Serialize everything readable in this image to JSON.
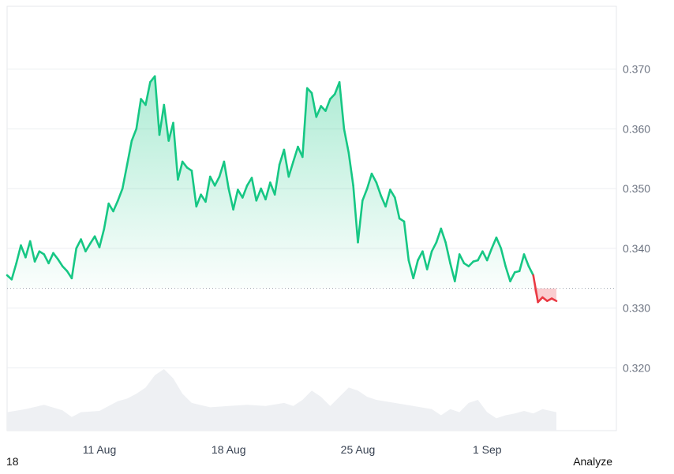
{
  "chart_data": {
    "type": "area",
    "title": "",
    "xlabel": "",
    "ylabel": "",
    "ylim": [
      0.3095,
      0.3805
    ],
    "xlim": [
      "2024-08-06",
      "2024-09-08"
    ],
    "y_ticks": [
      {
        "value": 0.37,
        "label": "0.370"
      },
      {
        "value": 0.36,
        "label": "0.360"
      },
      {
        "value": 0.35,
        "label": "0.350"
      },
      {
        "value": 0.34,
        "label": "0.340"
      },
      {
        "value": 0.33,
        "label": "0.330"
      },
      {
        "value": 0.32,
        "label": "0.320"
      }
    ],
    "x_ticks": [
      {
        "date": "2024-08-11",
        "label": "11 Aug"
      },
      {
        "date": "2024-08-18",
        "label": "18 Aug"
      },
      {
        "date": "2024-08-25",
        "label": "25 Aug"
      },
      {
        "date": "2024-09-01",
        "label": "1 Sep"
      }
    ],
    "baseline": 0.3333,
    "colors": {
      "up": "#16c784",
      "down": "#ea3943",
      "volume": "#eef0f3",
      "grid": "#eceef1"
    },
    "series": [
      {
        "values": [
          [
            "2024-08-06 00:00",
            0.3355
          ],
          [
            "2024-08-06 06:00",
            0.3348
          ],
          [
            "2024-08-06 12:00",
            0.3375
          ],
          [
            "2024-08-06 18:00",
            0.3405
          ],
          [
            "2024-08-07 00:00",
            0.3385
          ],
          [
            "2024-08-07 06:00",
            0.3412
          ],
          [
            "2024-08-07 12:00",
            0.3378
          ],
          [
            "2024-08-07 18:00",
            0.3395
          ],
          [
            "2024-08-08 00:00",
            0.339
          ],
          [
            "2024-08-08 06:00",
            0.3375
          ],
          [
            "2024-08-08 12:00",
            0.3392
          ],
          [
            "2024-08-08 18:00",
            0.3382
          ],
          [
            "2024-08-09 00:00",
            0.337
          ],
          [
            "2024-08-09 06:00",
            0.3362
          ],
          [
            "2024-08-09 12:00",
            0.335
          ],
          [
            "2024-08-09 18:00",
            0.34
          ],
          [
            "2024-08-10 00:00",
            0.3415
          ],
          [
            "2024-08-10 06:00",
            0.3395
          ],
          [
            "2024-08-10 12:00",
            0.3408
          ],
          [
            "2024-08-10 18:00",
            0.342
          ],
          [
            "2024-08-11 00:00",
            0.3402
          ],
          [
            "2024-08-11 06:00",
            0.3432
          ],
          [
            "2024-08-11 12:00",
            0.3475
          ],
          [
            "2024-08-11 18:00",
            0.3462
          ],
          [
            "2024-08-12 00:00",
            0.348
          ],
          [
            "2024-08-12 06:00",
            0.35
          ],
          [
            "2024-08-12 12:00",
            0.354
          ],
          [
            "2024-08-12 18:00",
            0.358
          ],
          [
            "2024-08-13 00:00",
            0.36
          ],
          [
            "2024-08-13 06:00",
            0.365
          ],
          [
            "2024-08-13 12:00",
            0.364
          ],
          [
            "2024-08-13 18:00",
            0.3678
          ],
          [
            "2024-08-14 00:00",
            0.3688
          ],
          [
            "2024-08-14 06:00",
            0.359
          ],
          [
            "2024-08-14 12:00",
            0.364
          ],
          [
            "2024-08-14 18:00",
            0.358
          ],
          [
            "2024-08-15 00:00",
            0.361
          ],
          [
            "2024-08-15 06:00",
            0.3515
          ],
          [
            "2024-08-15 12:00",
            0.3545
          ],
          [
            "2024-08-15 18:00",
            0.3535
          ],
          [
            "2024-08-16 00:00",
            0.353
          ],
          [
            "2024-08-16 06:00",
            0.347
          ],
          [
            "2024-08-16 12:00",
            0.349
          ],
          [
            "2024-08-16 18:00",
            0.3478
          ],
          [
            "2024-08-17 00:00",
            0.352
          ],
          [
            "2024-08-17 06:00",
            0.3505
          ],
          [
            "2024-08-17 12:00",
            0.352
          ],
          [
            "2024-08-17 18:00",
            0.3545
          ],
          [
            "2024-08-18 00:00",
            0.35
          ],
          [
            "2024-08-18 06:00",
            0.3465
          ],
          [
            "2024-08-18 12:00",
            0.3498
          ],
          [
            "2024-08-18 18:00",
            0.3485
          ],
          [
            "2024-08-19 00:00",
            0.3505
          ],
          [
            "2024-08-19 06:00",
            0.3518
          ],
          [
            "2024-08-19 12:00",
            0.348
          ],
          [
            "2024-08-19 18:00",
            0.35
          ],
          [
            "2024-08-20 00:00",
            0.3482
          ],
          [
            "2024-08-20 06:00",
            0.351
          ],
          [
            "2024-08-20 12:00",
            0.349
          ],
          [
            "2024-08-20 18:00",
            0.354
          ],
          [
            "2024-08-21 00:00",
            0.3565
          ],
          [
            "2024-08-21 06:00",
            0.352
          ],
          [
            "2024-08-21 12:00",
            0.3545
          ],
          [
            "2024-08-21 18:00",
            0.357
          ],
          [
            "2024-08-22 00:00",
            0.3553
          ],
          [
            "2024-08-22 06:00",
            0.3668
          ],
          [
            "2024-08-22 12:00",
            0.366
          ],
          [
            "2024-08-22 18:00",
            0.362
          ],
          [
            "2024-08-23 00:00",
            0.3638
          ],
          [
            "2024-08-23 06:00",
            0.363
          ],
          [
            "2024-08-23 12:00",
            0.365
          ],
          [
            "2024-08-23 18:00",
            0.3658
          ],
          [
            "2024-08-24 00:00",
            0.3678
          ],
          [
            "2024-08-24 06:00",
            0.36
          ],
          [
            "2024-08-24 12:00",
            0.356
          ],
          [
            "2024-08-24 18:00",
            0.3505
          ],
          [
            "2024-08-25 00:00",
            0.341
          ],
          [
            "2024-08-25 06:00",
            0.348
          ],
          [
            "2024-08-25 12:00",
            0.35
          ],
          [
            "2024-08-25 18:00",
            0.3525
          ],
          [
            "2024-08-26 00:00",
            0.351
          ],
          [
            "2024-08-26 06:00",
            0.3488
          ],
          [
            "2024-08-26 12:00",
            0.347
          ],
          [
            "2024-08-26 18:00",
            0.3498
          ],
          [
            "2024-08-27 00:00",
            0.3485
          ],
          [
            "2024-08-27 06:00",
            0.345
          ],
          [
            "2024-08-27 12:00",
            0.3445
          ],
          [
            "2024-08-27 18:00",
            0.338
          ],
          [
            "2024-08-28 00:00",
            0.335
          ],
          [
            "2024-08-28 06:00",
            0.338
          ],
          [
            "2024-08-28 12:00",
            0.3395
          ],
          [
            "2024-08-28 18:00",
            0.3365
          ],
          [
            "2024-08-29 00:00",
            0.3395
          ],
          [
            "2024-08-29 06:00",
            0.341
          ],
          [
            "2024-08-29 12:00",
            0.3433
          ],
          [
            "2024-08-29 18:00",
            0.341
          ],
          [
            "2024-08-30 00:00",
            0.3375
          ],
          [
            "2024-08-30 06:00",
            0.3345
          ],
          [
            "2024-08-30 12:00",
            0.339
          ],
          [
            "2024-08-30 18:00",
            0.3375
          ],
          [
            "2024-08-31 00:00",
            0.337
          ],
          [
            "2024-08-31 06:00",
            0.3378
          ],
          [
            "2024-08-31 12:00",
            0.338
          ],
          [
            "2024-08-31 18:00",
            0.3395
          ],
          [
            "2024-09-01 00:00",
            0.338
          ],
          [
            "2024-09-01 06:00",
            0.34
          ],
          [
            "2024-09-01 12:00",
            0.3418
          ],
          [
            "2024-09-01 18:00",
            0.34
          ],
          [
            "2024-09-02 00:00",
            0.337
          ],
          [
            "2024-09-02 06:00",
            0.3345
          ],
          [
            "2024-09-02 12:00",
            0.336
          ],
          [
            "2024-09-02 18:00",
            0.3362
          ],
          [
            "2024-09-03 00:00",
            0.339
          ],
          [
            "2024-09-03 06:00",
            0.337
          ],
          [
            "2024-09-03 12:00",
            0.3355
          ],
          [
            "2024-09-03 18:00",
            0.331
          ],
          [
            "2024-09-04 00:00",
            0.3318
          ],
          [
            "2024-09-04 06:00",
            0.3312
          ],
          [
            "2024-09-04 12:00",
            0.3316
          ],
          [
            "2024-09-04 18:00",
            0.3312
          ]
        ]
      }
    ],
    "volume": [
      [
        "2024-08-06 00:00",
        0.3
      ],
      [
        "2024-08-07 00:00",
        0.35
      ],
      [
        "2024-08-08 00:00",
        0.42
      ],
      [
        "2024-08-09 00:00",
        0.33
      ],
      [
        "2024-08-09 12:00",
        0.22
      ],
      [
        "2024-08-10 00:00",
        0.3
      ],
      [
        "2024-08-11 00:00",
        0.32
      ],
      [
        "2024-08-11 12:00",
        0.4
      ],
      [
        "2024-08-12 00:00",
        0.48
      ],
      [
        "2024-08-12 12:00",
        0.52
      ],
      [
        "2024-08-13 00:00",
        0.6
      ],
      [
        "2024-08-13 12:00",
        0.7
      ],
      [
        "2024-08-14 00:00",
        0.9
      ],
      [
        "2024-08-14 12:00",
        1.0
      ],
      [
        "2024-08-15 00:00",
        0.85
      ],
      [
        "2024-08-15 12:00",
        0.6
      ],
      [
        "2024-08-16 00:00",
        0.45
      ],
      [
        "2024-08-17 00:00",
        0.38
      ],
      [
        "2024-08-18 00:00",
        0.4
      ],
      [
        "2024-08-19 00:00",
        0.42
      ],
      [
        "2024-08-20 00:00",
        0.4
      ],
      [
        "2024-08-21 00:00",
        0.45
      ],
      [
        "2024-08-21 12:00",
        0.4
      ],
      [
        "2024-08-22 00:00",
        0.5
      ],
      [
        "2024-08-22 12:00",
        0.65
      ],
      [
        "2024-08-23 00:00",
        0.55
      ],
      [
        "2024-08-23 12:00",
        0.4
      ],
      [
        "2024-08-24 00:00",
        0.55
      ],
      [
        "2024-08-24 12:00",
        0.7
      ],
      [
        "2024-08-25 00:00",
        0.65
      ],
      [
        "2024-08-25 12:00",
        0.55
      ],
      [
        "2024-08-26 00:00",
        0.5
      ],
      [
        "2024-08-27 00:00",
        0.45
      ],
      [
        "2024-08-28 00:00",
        0.4
      ],
      [
        "2024-08-29 00:00",
        0.35
      ],
      [
        "2024-08-29 12:00",
        0.25
      ],
      [
        "2024-08-30 00:00",
        0.35
      ],
      [
        "2024-08-30 12:00",
        0.3
      ],
      [
        "2024-08-31 00:00",
        0.45
      ],
      [
        "2024-08-31 12:00",
        0.5
      ],
      [
        "2024-09-01 00:00",
        0.3
      ],
      [
        "2024-09-01 12:00",
        0.2
      ],
      [
        "2024-09-02 00:00",
        0.25
      ],
      [
        "2024-09-02 12:00",
        0.28
      ],
      [
        "2024-09-03 00:00",
        0.32
      ],
      [
        "2024-09-03 12:00",
        0.28
      ],
      [
        "2024-09-04 00:00",
        0.35
      ],
      [
        "2024-09-04 18:00",
        0.3
      ]
    ]
  },
  "footer": {
    "left_text": "18",
    "right_text": "Analyze"
  }
}
